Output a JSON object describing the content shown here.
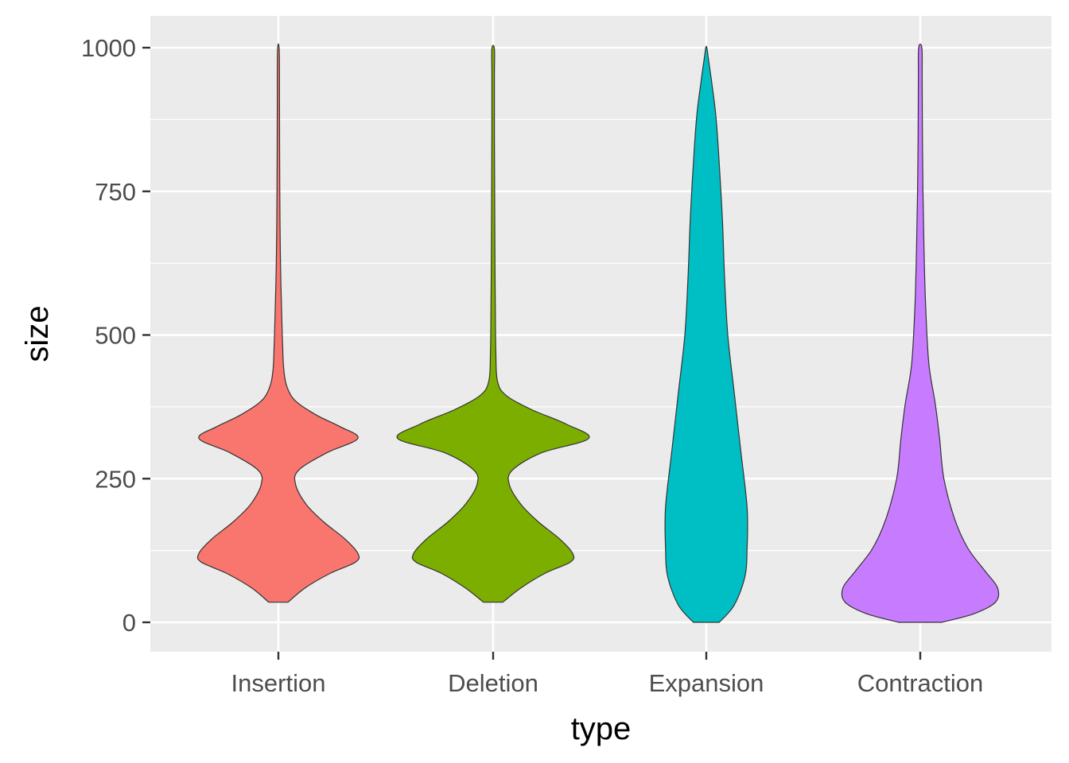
{
  "chart_data": {
    "type": "violin",
    "xlabel": "type",
    "ylabel": "size",
    "ylim": [
      -50,
      1050
    ],
    "yticks": [
      0,
      250,
      500,
      750,
      1000
    ],
    "ytick_labels": [
      "0",
      "250",
      "500",
      "750",
      "1000"
    ],
    "grid": true,
    "legend": "none",
    "categories": [
      "Insertion",
      "Deletion",
      "Expansion",
      "Contraction"
    ],
    "colors": [
      "#F8766D",
      "#7CAE00",
      "#00BFC4",
      "#C77CFF"
    ],
    "series": [
      {
        "category": "Insertion",
        "min": 35,
        "max": 995,
        "half_width_profile": [
          [
            35,
            0.09
          ],
          [
            60,
            0.25
          ],
          [
            85,
            0.48
          ],
          [
            105,
            0.72
          ],
          [
            120,
            0.74
          ],
          [
            145,
            0.62
          ],
          [
            175,
            0.42
          ],
          [
            205,
            0.26
          ],
          [
            240,
            0.16
          ],
          [
            265,
            0.19
          ],
          [
            295,
            0.45
          ],
          [
            320,
            0.74
          ],
          [
            340,
            0.58
          ],
          [
            360,
            0.36
          ],
          [
            385,
            0.16
          ],
          [
            410,
            0.08
          ],
          [
            440,
            0.05
          ],
          [
            480,
            0.04
          ],
          [
            540,
            0.03
          ],
          [
            620,
            0.02
          ],
          [
            700,
            0.015
          ],
          [
            800,
            0.012
          ],
          [
            900,
            0.01
          ],
          [
            995,
            0.008
          ]
        ]
      },
      {
        "category": "Deletion",
        "min": 35,
        "max": 998,
        "half_width_profile": [
          [
            35,
            0.09
          ],
          [
            60,
            0.26
          ],
          [
            85,
            0.48
          ],
          [
            105,
            0.72
          ],
          [
            120,
            0.74
          ],
          [
            145,
            0.62
          ],
          [
            175,
            0.42
          ],
          [
            205,
            0.26
          ],
          [
            240,
            0.15
          ],
          [
            265,
            0.18
          ],
          [
            295,
            0.45
          ],
          [
            320,
            0.89
          ],
          [
            345,
            0.68
          ],
          [
            370,
            0.36
          ],
          [
            395,
            0.12
          ],
          [
            420,
            0.04
          ],
          [
            470,
            0.025
          ],
          [
            550,
            0.02
          ],
          [
            650,
            0.016
          ],
          [
            750,
            0.014
          ],
          [
            850,
            0.012
          ],
          [
            950,
            0.012
          ],
          [
            998,
            0.012
          ]
        ]
      },
      {
        "category": "Expansion",
        "min": 0,
        "max": 1000,
        "half_width_profile": [
          [
            0,
            0.12
          ],
          [
            30,
            0.26
          ],
          [
            80,
            0.36
          ],
          [
            130,
            0.38
          ],
          [
            200,
            0.38
          ],
          [
            300,
            0.32
          ],
          [
            400,
            0.26
          ],
          [
            500,
            0.2
          ],
          [
            600,
            0.17
          ],
          [
            700,
            0.15
          ],
          [
            800,
            0.12
          ],
          [
            880,
            0.09
          ],
          [
            940,
            0.05
          ],
          [
            980,
            0.02
          ],
          [
            1000,
            0.005
          ]
        ]
      },
      {
        "category": "Contraction",
        "min": 0,
        "max": 1000,
        "half_width_profile": [
          [
            0,
            0.2
          ],
          [
            15,
            0.5
          ],
          [
            35,
            0.7
          ],
          [
            60,
            0.72
          ],
          [
            90,
            0.6
          ],
          [
            130,
            0.44
          ],
          [
            180,
            0.32
          ],
          [
            250,
            0.22
          ],
          [
            320,
            0.18
          ],
          [
            380,
            0.14
          ],
          [
            450,
            0.08
          ],
          [
            550,
            0.05
          ],
          [
            650,
            0.035
          ],
          [
            750,
            0.025
          ],
          [
            850,
            0.02
          ],
          [
            950,
            0.018
          ],
          [
            1000,
            0.015
          ]
        ]
      }
    ]
  }
}
